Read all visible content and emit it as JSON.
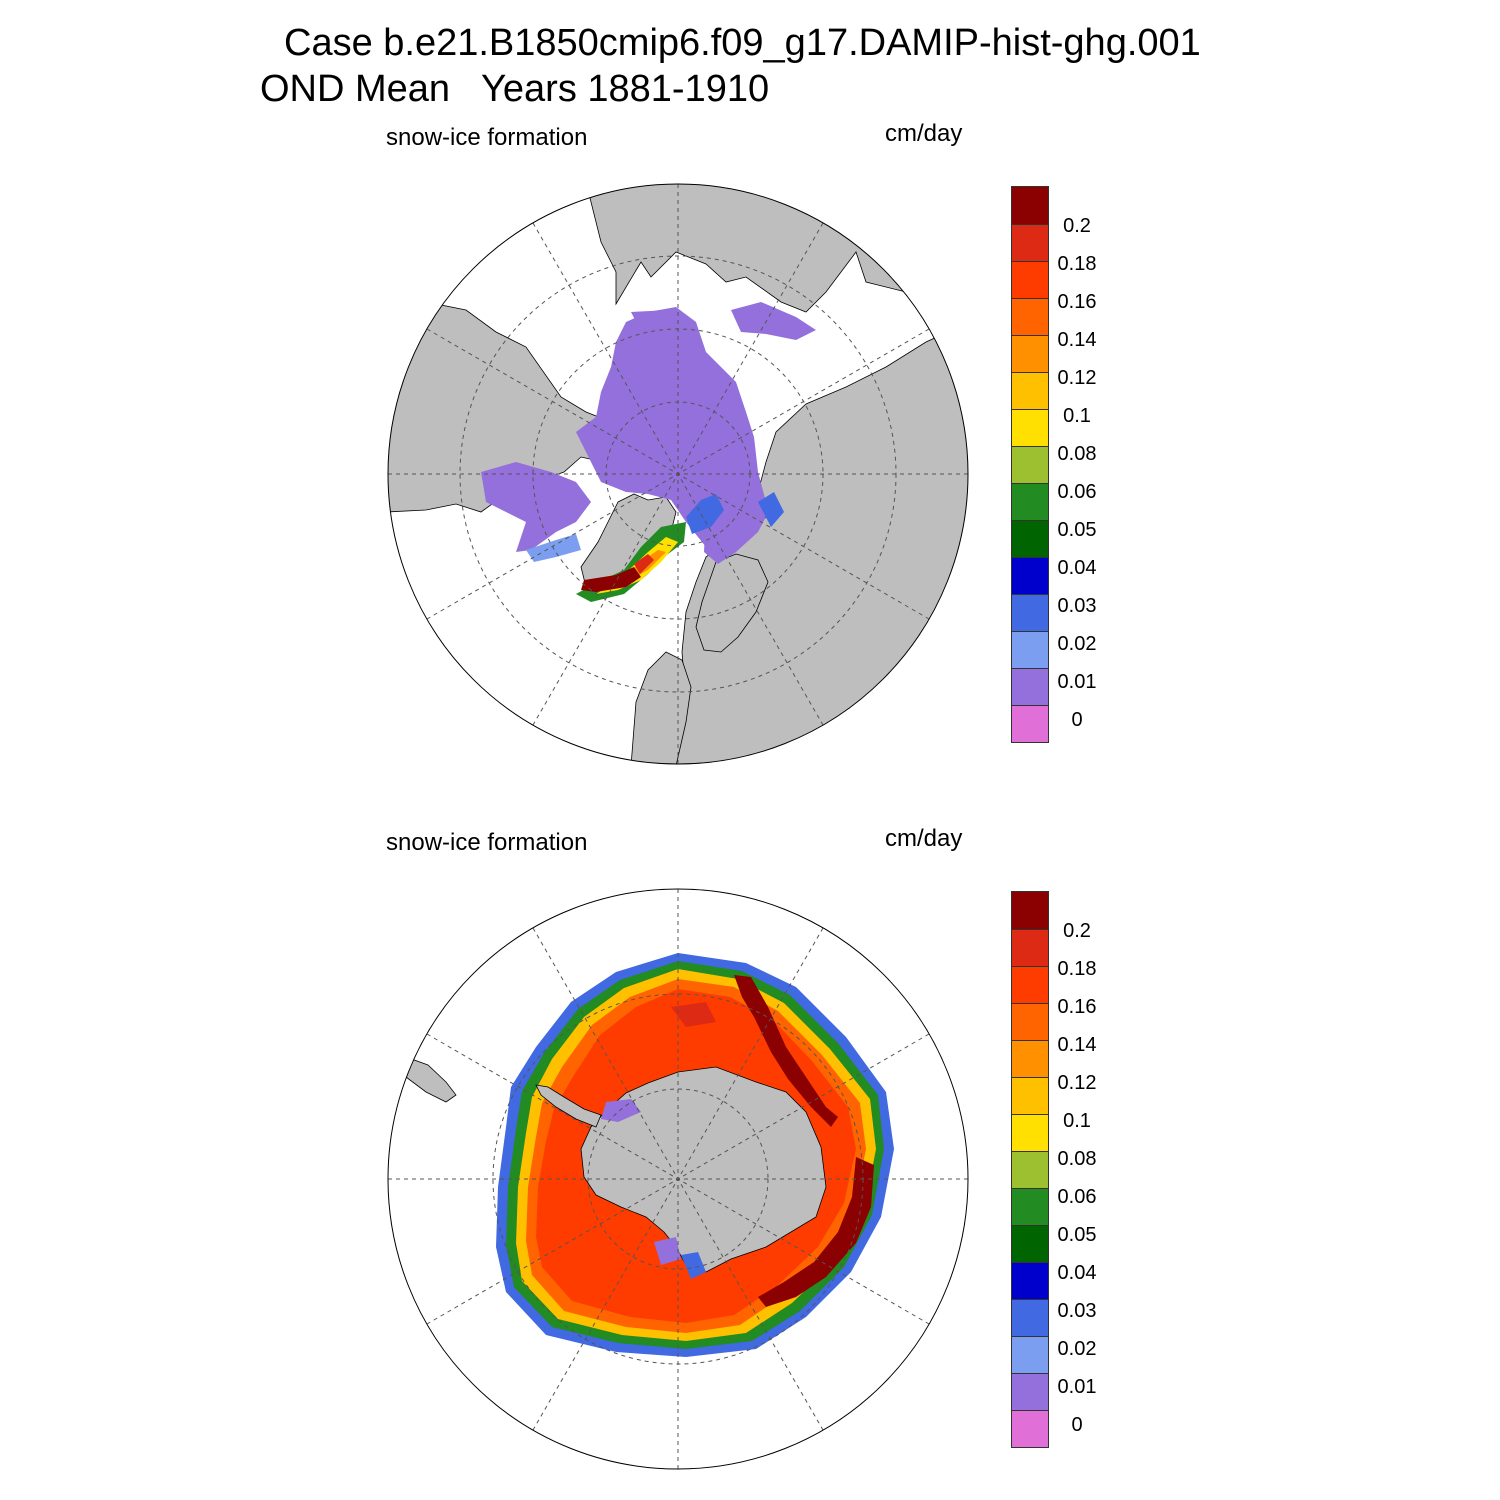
{
  "figure": {
    "title_line1": "Case b.e21.B1850cmip6.f09_g17.DAMIP-hist-ghg.001",
    "title_line2": "OND Mean   Years 1881-1910"
  },
  "panels": [
    {
      "id": "north",
      "hemisphere": "Northern",
      "left_label": "snow-ice formation",
      "right_label": "cm/day"
    },
    {
      "id": "south",
      "hemisphere": "Southern",
      "left_label": "snow-ice formation",
      "right_label": "cm/day"
    }
  ],
  "colorbar": {
    "labels": [
      "0.2",
      "0.18",
      "0.16",
      "0.14",
      "0.12",
      "0.1",
      "0.08",
      "0.06",
      "0.05",
      "0.04",
      "0.03",
      "0.02",
      "0.01",
      "0"
    ],
    "colors_top_to_bottom": [
      "#8b0000",
      "#dc2a14",
      "#ff3c00",
      "#ff6400",
      "#ff9100",
      "#ffc000",
      "#ffe000",
      "#9cc030",
      "#228b22",
      "#006400",
      "#0000cd",
      "#4169e1",
      "#7b9ef0",
      "#9370db",
      "#e070d8"
    ]
  },
  "colors": {
    "land": "#bebebe",
    "ice_zero": "#9370db",
    "ocean": "#ffffff",
    "grid": "#555555"
  }
}
